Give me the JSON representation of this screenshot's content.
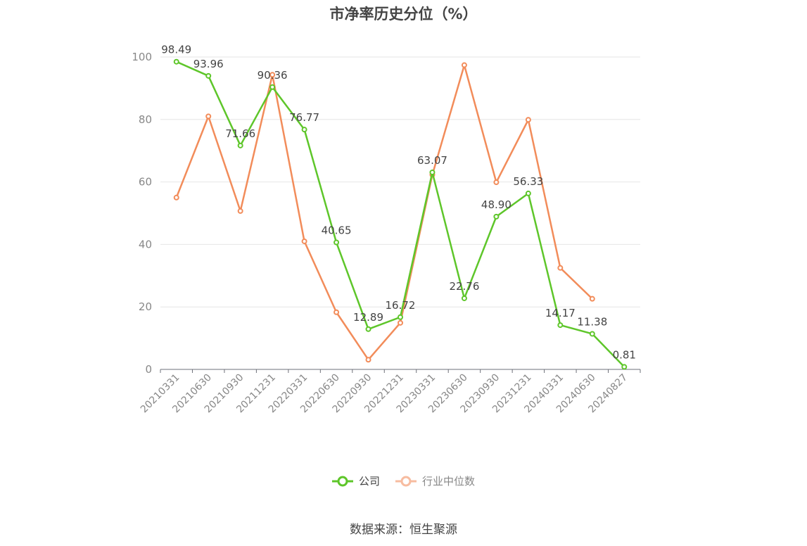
{
  "chart_data": {
    "type": "line",
    "title": "市净率历史分位（%）",
    "categories": [
      "20210331",
      "20210630",
      "20210930",
      "20211231",
      "20220331",
      "20220630",
      "20220930",
      "20221231",
      "20230331",
      "20230630",
      "20230930",
      "20231231",
      "20240331",
      "20240630",
      "20240827"
    ],
    "series": [
      {
        "name": "公司",
        "color": "#5ec62a",
        "values": [
          98.49,
          93.96,
          71.66,
          90.36,
          76.77,
          40.65,
          12.89,
          16.72,
          63.07,
          22.76,
          48.9,
          56.33,
          14.17,
          11.38,
          0.81
        ],
        "labels": [
          "98.49",
          "93.96",
          "71.66",
          "90.36",
          "76.77",
          "40.65",
          "12.89",
          "16.72",
          "63.07",
          "22.76",
          "48.90",
          "56.33",
          "14.17",
          "11.38",
          "0.81"
        ]
      },
      {
        "name": "行业中位数",
        "color": "#f28c5a",
        "values": [
          55.0,
          81.0,
          50.7,
          94.3,
          41.0,
          18.3,
          3.1,
          14.9,
          62.3,
          97.4,
          59.9,
          79.9,
          32.5,
          22.6,
          null
        ]
      }
    ],
    "yaxis": {
      "min": 0,
      "max": 100,
      "ticks": [
        0,
        20,
        40,
        60,
        80,
        100
      ]
    },
    "grid": true,
    "legend_position": "bottom"
  },
  "source": "数据来源：恒生聚源"
}
